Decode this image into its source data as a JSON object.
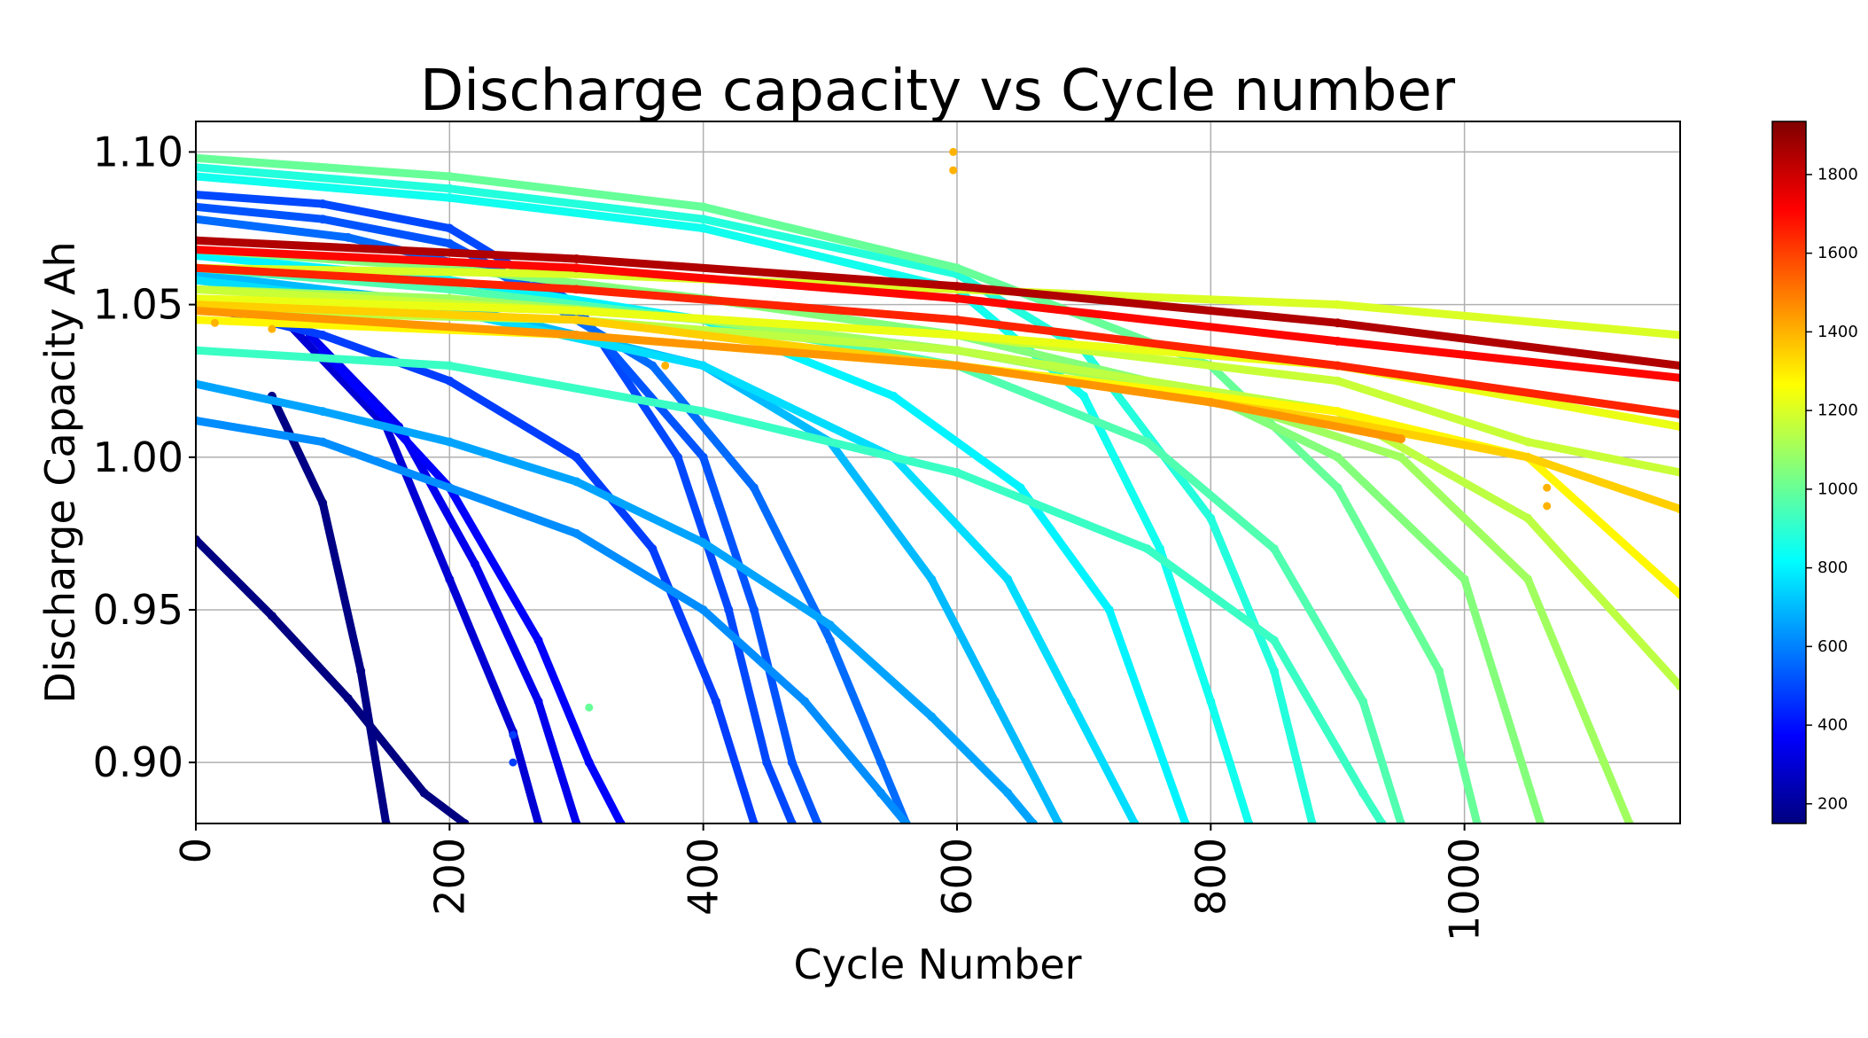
{
  "chart_data": {
    "type": "scatter",
    "title": "Discharge capacity vs Cycle number",
    "xlabel": "Cycle Number",
    "ylabel": "Discharge Capacity Ah",
    "xlim": [
      0,
      1170
    ],
    "ylim": [
      0.88,
      1.11
    ],
    "x_ticks": [
      "0",
      "200",
      "400",
      "600",
      "800",
      "1000"
    ],
    "y_ticks": [
      "0.90",
      "0.95",
      "1.00",
      "1.05",
      "1.10"
    ],
    "grid": true,
    "colormap": "jet",
    "colorbar": {
      "range": [
        150,
        1935
      ],
      "ticks": [
        "200",
        "400",
        "600",
        "800",
        "1000",
        "1200",
        "1400",
        "1600",
        "1800"
      ]
    },
    "series": [
      {
        "cycle_life": 150,
        "values": [
          [
            0,
            0.973
          ],
          [
            60,
            0.948
          ],
          [
            120,
            0.921
          ],
          [
            180,
            0.89
          ],
          [
            212,
            0.88
          ]
        ]
      },
      {
        "cycle_life": 160,
        "values": [
          [
            60,
            1.02
          ],
          [
            100,
            0.985
          ],
          [
            130,
            0.93
          ],
          [
            150,
            0.88
          ]
        ]
      },
      {
        "cycle_life": 300,
        "values": [
          [
            70,
            1.045
          ],
          [
            150,
            1.01
          ],
          [
            200,
            0.96
          ],
          [
            250,
            0.91
          ],
          [
            270,
            0.88
          ]
        ]
      },
      {
        "cycle_life": 340,
        "values": [
          [
            90,
            1.04
          ],
          [
            160,
            1.01
          ],
          [
            220,
            0.965
          ],
          [
            270,
            0.92
          ],
          [
            300,
            0.88
          ]
        ]
      },
      {
        "cycle_life": 370,
        "values": [
          [
            100,
            1.035
          ],
          [
            200,
            0.99
          ],
          [
            270,
            0.94
          ],
          [
            310,
            0.9
          ],
          [
            335,
            0.88
          ]
        ]
      },
      {
        "cycle_life": 480,
        "values": [
          [
            0,
            1.05
          ],
          [
            100,
            1.04
          ],
          [
            200,
            1.025
          ],
          [
            300,
            1.0
          ],
          [
            360,
            0.97
          ],
          [
            410,
            0.92
          ],
          [
            440,
            0.88
          ]
        ]
      },
      {
        "cycle_life": 500,
        "values": [
          [
            0,
            1.086
          ],
          [
            100,
            1.083
          ],
          [
            200,
            1.075
          ],
          [
            300,
            1.05
          ],
          [
            380,
            1.0
          ],
          [
            420,
            0.95
          ],
          [
            450,
            0.9
          ],
          [
            470,
            0.88
          ]
        ]
      },
      {
        "cycle_life": 520,
        "values": [
          [
            0,
            1.082
          ],
          [
            100,
            1.078
          ],
          [
            200,
            1.07
          ],
          [
            300,
            1.048
          ],
          [
            400,
            1.0
          ],
          [
            440,
            0.95
          ],
          [
            470,
            0.9
          ],
          [
            490,
            0.88
          ]
        ]
      },
      {
        "cycle_life": 560,
        "values": [
          [
            0,
            1.078
          ],
          [
            120,
            1.072
          ],
          [
            240,
            1.06
          ],
          [
            360,
            1.03
          ],
          [
            440,
            0.99
          ],
          [
            500,
            0.94
          ],
          [
            540,
            0.9
          ],
          [
            560,
            0.88
          ]
        ]
      },
      {
        "cycle_life": 620,
        "values": [
          [
            0,
            1.012
          ],
          [
            100,
            1.005
          ],
          [
            200,
            0.99
          ],
          [
            300,
            0.975
          ],
          [
            400,
            0.95
          ],
          [
            480,
            0.92
          ],
          [
            540,
            0.89
          ],
          [
            560,
            0.88
          ]
        ]
      },
      {
        "cycle_life": 660,
        "values": [
          [
            0,
            1.024
          ],
          [
            100,
            1.015
          ],
          [
            200,
            1.005
          ],
          [
            300,
            0.992
          ],
          [
            400,
            0.972
          ],
          [
            500,
            0.945
          ],
          [
            580,
            0.915
          ],
          [
            640,
            0.89
          ],
          [
            660,
            0.88
          ]
        ]
      },
      {
        "cycle_life": 700,
        "values": [
          [
            0,
            1.06
          ],
          [
            200,
            1.05
          ],
          [
            400,
            1.03
          ],
          [
            500,
            1.005
          ],
          [
            580,
            0.96
          ],
          [
            630,
            0.92
          ],
          [
            680,
            0.88
          ]
        ]
      },
      {
        "cycle_life": 760,
        "values": [
          [
            0,
            1.058
          ],
          [
            200,
            1.048
          ],
          [
            400,
            1.03
          ],
          [
            550,
            1.0
          ],
          [
            640,
            0.96
          ],
          [
            690,
            0.92
          ],
          [
            740,
            0.88
          ]
        ]
      },
      {
        "cycle_life": 800,
        "values": [
          [
            0,
            1.066
          ],
          [
            200,
            1.058
          ],
          [
            400,
            1.045
          ],
          [
            550,
            1.02
          ],
          [
            650,
            0.99
          ],
          [
            720,
            0.95
          ],
          [
            780,
            0.88
          ]
        ]
      },
      {
        "cycle_life": 850,
        "values": [
          [
            0,
            1.092
          ],
          [
            200,
            1.085
          ],
          [
            400,
            1.075
          ],
          [
            600,
            1.055
          ],
          [
            700,
            1.02
          ],
          [
            760,
            0.97
          ],
          [
            800,
            0.92
          ],
          [
            830,
            0.88
          ]
        ]
      },
      {
        "cycle_life": 880,
        "values": [
          [
            0,
            1.095
          ],
          [
            200,
            1.088
          ],
          [
            400,
            1.078
          ],
          [
            600,
            1.06
          ],
          [
            700,
            1.035
          ],
          [
            800,
            0.98
          ],
          [
            850,
            0.93
          ],
          [
            880,
            0.88
          ]
        ]
      },
      {
        "cycle_life": 920,
        "values": [
          [
            0,
            1.035
          ],
          [
            200,
            1.03
          ],
          [
            400,
            1.015
          ],
          [
            600,
            0.995
          ],
          [
            750,
            0.97
          ],
          [
            850,
            0.94
          ],
          [
            920,
            0.89
          ],
          [
            935,
            0.88
          ]
        ]
      },
      {
        "cycle_life": 960,
        "values": [
          [
            0,
            1.062
          ],
          [
            200,
            1.055
          ],
          [
            400,
            1.045
          ],
          [
            600,
            1.03
          ],
          [
            750,
            1.005
          ],
          [
            850,
            0.97
          ],
          [
            920,
            0.92
          ],
          [
            950,
            0.88
          ]
        ]
      },
      {
        "cycle_life": 1000,
        "values": [
          [
            0,
            1.098
          ],
          [
            200,
            1.092
          ],
          [
            400,
            1.082
          ],
          [
            600,
            1.062
          ],
          [
            800,
            1.03
          ],
          [
            900,
            0.99
          ],
          [
            980,
            0.93
          ],
          [
            1010,
            0.88
          ]
        ]
      },
      {
        "cycle_life": 1050,
        "values": [
          [
            0,
            1.068
          ],
          [
            200,
            1.062
          ],
          [
            400,
            1.052
          ],
          [
            600,
            1.04
          ],
          [
            800,
            1.02
          ],
          [
            900,
            1.0
          ],
          [
            1000,
            0.96
          ],
          [
            1060,
            0.88
          ]
        ]
      },
      {
        "cycle_life": 1100,
        "values": [
          [
            0,
            1.055
          ],
          [
            200,
            1.052
          ],
          [
            400,
            1.045
          ],
          [
            600,
            1.035
          ],
          [
            800,
            1.02
          ],
          [
            950,
            1.0
          ],
          [
            1050,
            0.96
          ],
          [
            1110,
            0.9
          ],
          [
            1130,
            0.88
          ]
        ]
      },
      {
        "cycle_life": 1150,
        "values": [
          [
            0,
            1.048
          ],
          [
            300,
            1.045
          ],
          [
            600,
            1.035
          ],
          [
            900,
            1.015
          ],
          [
            1050,
            0.98
          ],
          [
            1170,
            0.925
          ]
        ]
      },
      {
        "cycle_life": 1170,
        "values": [
          [
            0,
            1.055
          ],
          [
            300,
            1.048
          ],
          [
            600,
            1.04
          ],
          [
            900,
            1.025
          ],
          [
            1050,
            1.005
          ],
          [
            1170,
            0.995
          ]
        ]
      },
      {
        "cycle_life": 1200,
        "values": [
          [
            0,
            1.062
          ],
          [
            300,
            1.06
          ],
          [
            600,
            1.055
          ],
          [
            900,
            1.05
          ],
          [
            1170,
            1.04
          ]
        ]
      },
      {
        "cycle_life": 1230,
        "values": [
          [
            0,
            1.052
          ],
          [
            300,
            1.048
          ],
          [
            600,
            1.04
          ],
          [
            900,
            1.03
          ],
          [
            1170,
            1.01
          ]
        ]
      },
      {
        "cycle_life": 1280,
        "values": [
          [
            0,
            1.045
          ],
          [
            300,
            1.04
          ],
          [
            600,
            1.03
          ],
          [
            900,
            1.015
          ],
          [
            1050,
            1.0
          ],
          [
            1170,
            0.955
          ]
        ]
      },
      {
        "cycle_life": 1350,
        "values": [
          [
            0,
            1.05
          ],
          [
            300,
            1.045
          ],
          [
            600,
            1.03
          ],
          [
            900,
            1.012
          ],
          [
            1050,
            1.0
          ],
          [
            1170,
            0.983
          ]
        ]
      },
      {
        "cycle_life": 1450,
        "values": [
          [
            0,
            1.048
          ],
          [
            300,
            1.04
          ],
          [
            600,
            1.03
          ],
          [
            800,
            1.018
          ],
          [
            950,
            1.006
          ]
        ]
      },
      {
        "cycle_life": 1650,
        "values": [
          [
            0,
            1.062
          ],
          [
            300,
            1.055
          ],
          [
            600,
            1.045
          ],
          [
            900,
            1.03
          ],
          [
            1170,
            1.014
          ]
        ]
      },
      {
        "cycle_life": 1700,
        "values": [
          [
            0,
            1.068
          ],
          [
            300,
            1.062
          ],
          [
            600,
            1.052
          ],
          [
            900,
            1.038
          ],
          [
            1170,
            1.026
          ]
        ]
      },
      {
        "cycle_life": 1850,
        "values": [
          [
            0,
            1.071
          ],
          [
            300,
            1.065
          ],
          [
            600,
            1.056
          ],
          [
            900,
            1.044
          ],
          [
            1170,
            1.03
          ]
        ]
      }
    ],
    "outliers": [
      {
        "x": 597,
        "y": 1.1,
        "c": 1400
      },
      {
        "x": 597,
        "y": 1.094,
        "c": 1400
      },
      {
        "x": 310,
        "y": 0.918,
        "c": 1000
      },
      {
        "x": 250,
        "y": 0.909,
        "c": 480
      },
      {
        "x": 250,
        "y": 0.9,
        "c": 480
      },
      {
        "x": 60,
        "y": 1.042,
        "c": 1400
      },
      {
        "x": 15,
        "y": 1.044,
        "c": 1400
      },
      {
        "x": 370,
        "y": 1.03,
        "c": 1400
      },
      {
        "x": 1065,
        "y": 0.99,
        "c": 1400
      },
      {
        "x": 1065,
        "y": 0.984,
        "c": 1400
      }
    ]
  }
}
